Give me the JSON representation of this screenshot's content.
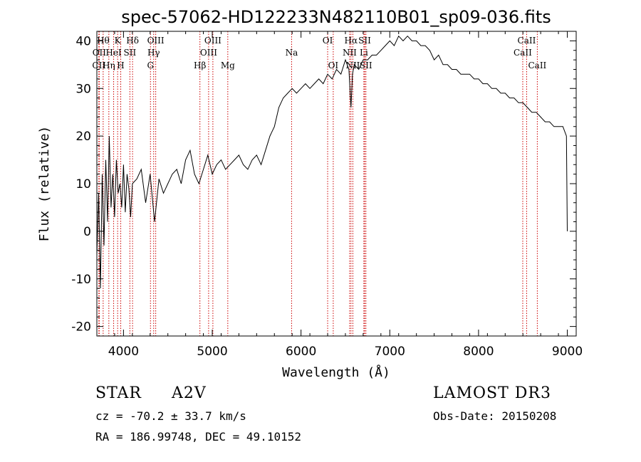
{
  "chart_data": {
    "type": "line",
    "title": "spec-57062-HD122233N482110B01_sp09-036.fits",
    "xlabel": "Wavelength (Å)",
    "ylabel": "Flux (relative)",
    "xlim": [
      3700,
      9100
    ],
    "ylim": [
      -22,
      42
    ],
    "xticks": [
      4000,
      5000,
      6000,
      7000,
      8000,
      9000
    ],
    "yticks": [
      -20,
      -10,
      0,
      10,
      20,
      30,
      40
    ],
    "series": [
      {
        "name": "flux",
        "x": [
          3700,
          3720,
          3740,
          3760,
          3780,
          3800,
          3820,
          3840,
          3860,
          3880,
          3900,
          3920,
          3940,
          3960,
          3980,
          4000,
          4020,
          4040,
          4060,
          4080,
          4100,
          4150,
          4200,
          4250,
          4300,
          4350,
          4400,
          4450,
          4500,
          4550,
          4600,
          4650,
          4700,
          4750,
          4800,
          4850,
          4900,
          4950,
          5000,
          5050,
          5100,
          5150,
          5200,
          5250,
          5300,
          5350,
          5400,
          5450,
          5500,
          5550,
          5600,
          5650,
          5700,
          5750,
          5800,
          5850,
          5900,
          5950,
          6000,
          6050,
          6100,
          6150,
          6200,
          6250,
          6300,
          6350,
          6400,
          6450,
          6500,
          6540,
          6563,
          6580,
          6600,
          6650,
          6700,
          6750,
          6800,
          6850,
          6900,
          6950,
          7000,
          7050,
          7100,
          7150,
          7200,
          7250,
          7300,
          7350,
          7400,
          7450,
          7500,
          7550,
          7600,
          7650,
          7700,
          7750,
          7800,
          7850,
          7900,
          7950,
          8000,
          8050,
          8100,
          8150,
          8200,
          8250,
          8300,
          8350,
          8400,
          8450,
          8500,
          8550,
          8600,
          8650,
          8700,
          8750,
          8800,
          8850,
          8900,
          8950,
          8990,
          9000
        ],
        "values": [
          -5,
          8,
          -12,
          12,
          -3,
          15,
          2,
          20,
          5,
          12,
          3,
          15,
          8,
          10,
          5,
          14,
          4,
          12,
          9,
          3,
          10,
          11,
          13,
          6,
          12,
          2,
          11,
          8,
          10,
          12,
          13,
          10,
          15,
          17,
          12,
          10,
          13,
          16,
          12,
          14,
          15,
          13,
          14,
          15,
          16,
          14,
          13,
          15,
          16,
          14,
          17,
          20,
          22,
          26,
          28,
          29,
          30,
          29,
          30,
          31,
          30,
          31,
          32,
          31,
          33,
          32,
          34,
          33,
          36,
          34,
          26,
          33,
          35,
          34,
          36,
          36,
          37,
          37,
          38,
          39,
          40,
          39,
          41,
          40,
          41,
          40,
          40,
          39,
          39,
          38,
          36,
          37,
          35,
          35,
          34,
          34,
          33,
          33,
          33,
          32,
          32,
          31,
          31,
          30,
          30,
          29,
          29,
          28,
          28,
          27,
          27,
          26,
          25,
          25,
          24,
          23,
          23,
          22,
          22,
          22,
          20,
          0
        ]
      }
    ],
    "line_marks": [
      {
        "label": "CII",
        "x": 3722,
        "row": 2
      },
      {
        "label": "OII",
        "x": 3727,
        "row": 1
      },
      {
        "label": "Hθ",
        "x": 3771,
        "row": 0
      },
      {
        "label": "Hη",
        "x": 3835,
        "row": 2
      },
      {
        "label": "HeI",
        "x": 3889,
        "row": 1
      },
      {
        "label": "K",
        "x": 3934,
        "row": 0
      },
      {
        "label": "H",
        "x": 3969,
        "row": 2
      },
      {
        "label": "SII",
        "x": 4072,
        "row": 1
      },
      {
        "label": "Hδ",
        "x": 4102,
        "row": 0
      },
      {
        "label": "G",
        "x": 4304,
        "row": 2
      },
      {
        "label": "Hγ",
        "x": 4340,
        "row": 1
      },
      {
        "label": "OIII",
        "x": 4363,
        "row": 0
      },
      {
        "label": "Hβ",
        "x": 4861,
        "row": 2
      },
      {
        "label": "OIII",
        "x": 4959,
        "row": 1
      },
      {
        "label": "OIII",
        "x": 5007,
        "row": 0
      },
      {
        "label": "Mg",
        "x": 5175,
        "row": 2
      },
      {
        "label": "Na",
        "x": 5894,
        "row": 1
      },
      {
        "label": "OI",
        "x": 6300,
        "row": 0
      },
      {
        "label": "OI",
        "x": 6363,
        "row": 2
      },
      {
        "label": "NII",
        "x": 6548,
        "row": 1
      },
      {
        "label": "Hα",
        "x": 6563,
        "row": 0
      },
      {
        "label": "NII",
        "x": 6584,
        "row": 2
      },
      {
        "label": "SII",
        "x": 6717,
        "row": 0
      },
      {
        "label": "Li",
        "x": 6708,
        "row": 1
      },
      {
        "label": "SII",
        "x": 6731,
        "row": 2
      },
      {
        "label": "CaII",
        "x": 8498,
        "row": 1
      },
      {
        "label": "CaII",
        "x": 8542,
        "row": 0
      },
      {
        "label": "CaII",
        "x": 8662,
        "row": 2
      }
    ],
    "colors": {
      "spectrum": "#000000",
      "lines": "#cc0000",
      "axes": "#000000"
    }
  },
  "info": {
    "class_label": "STAR",
    "subclass": "A2V",
    "survey": "LAMOST DR3",
    "cz": "cz = -70.2 ± 33.7 km/s",
    "obs_date": "Obs-Date: 20150208",
    "coords": "RA = 186.99748, DEC =  49.10152"
  }
}
